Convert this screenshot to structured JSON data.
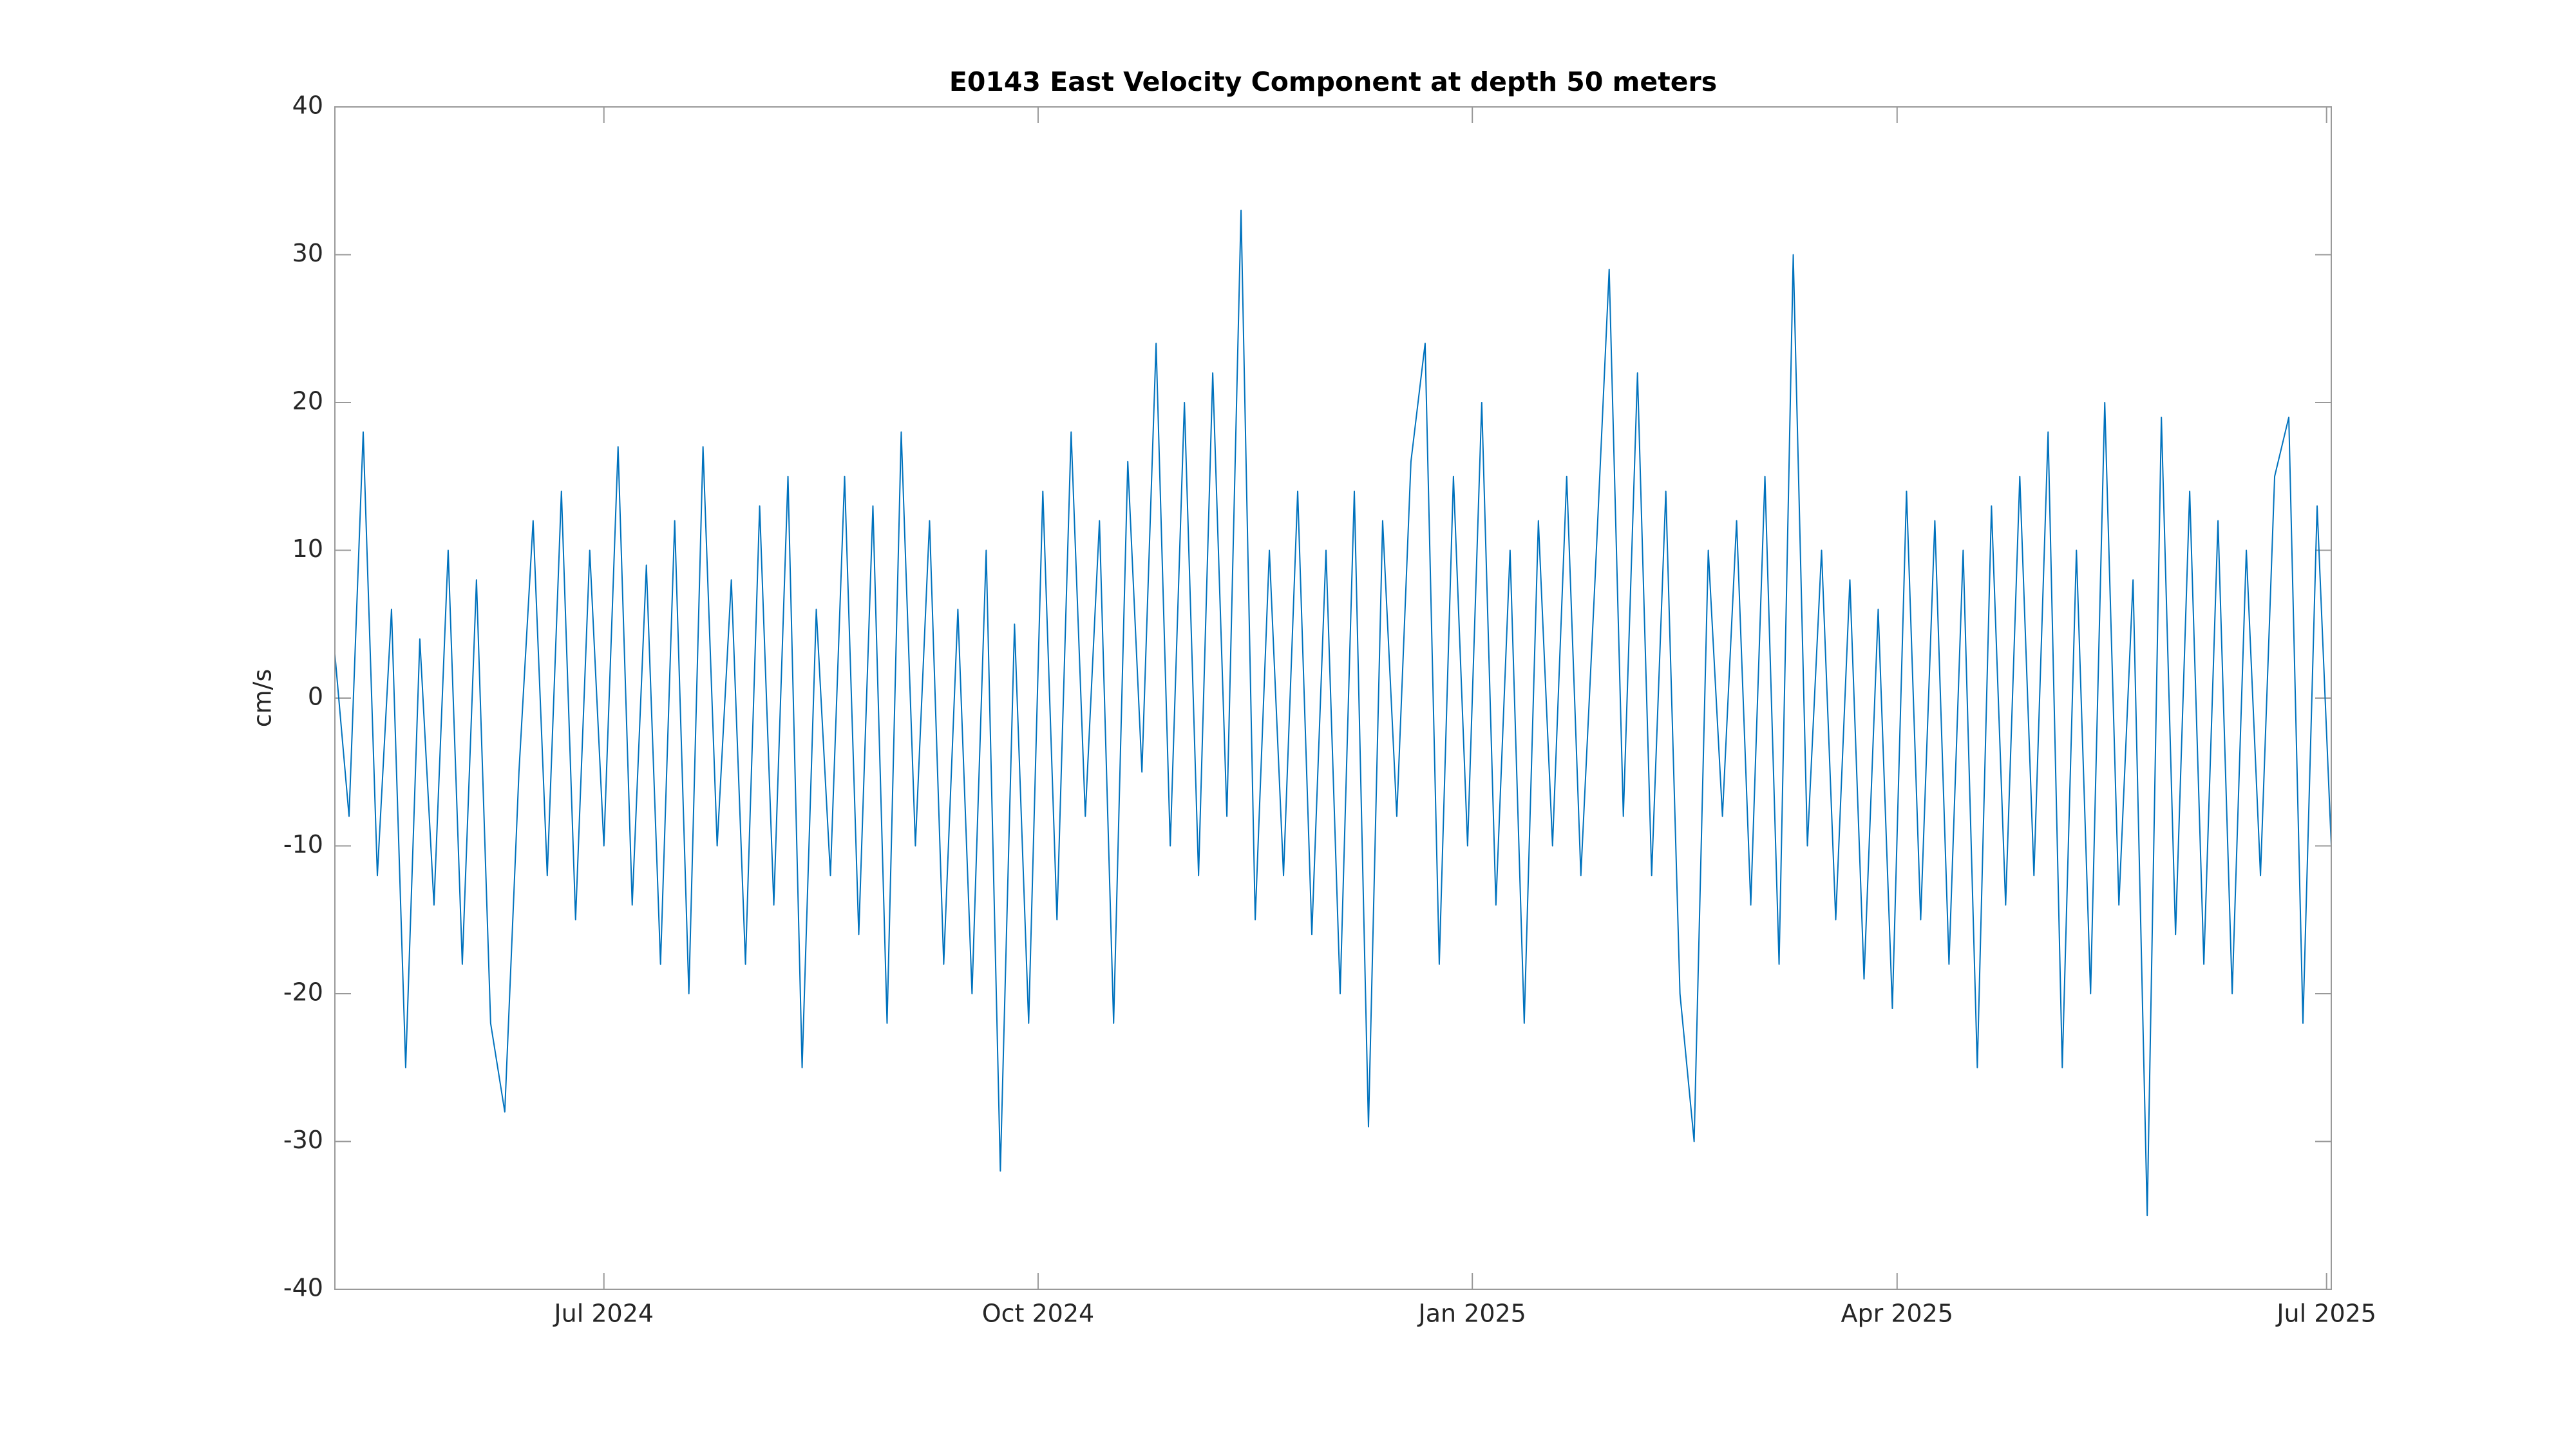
{
  "chart_data": {
    "type": "line",
    "title": "E0143 East Velocity Component at depth 50 meters",
    "ylabel": "cm/s",
    "x": [
      "2024-05-05",
      "2024-05-08",
      "2024-05-11",
      "2024-05-14",
      "2024-05-17",
      "2024-05-20",
      "2024-05-23",
      "2024-05-26",
      "2024-05-29",
      "2024-06-01",
      "2024-06-04",
      "2024-06-07",
      "2024-06-10",
      "2024-06-13",
      "2024-06-16",
      "2024-06-19",
      "2024-06-22",
      "2024-06-25",
      "2024-06-28",
      "2024-07-01",
      "2024-07-04",
      "2024-07-07",
      "2024-07-10",
      "2024-07-13",
      "2024-07-16",
      "2024-07-19",
      "2024-07-22",
      "2024-07-25",
      "2024-07-28",
      "2024-07-31",
      "2024-08-03",
      "2024-08-06",
      "2024-08-09",
      "2024-08-12",
      "2024-08-15",
      "2024-08-18",
      "2024-08-21",
      "2024-08-24",
      "2024-08-27",
      "2024-08-30",
      "2024-09-02",
      "2024-09-05",
      "2024-09-08",
      "2024-09-11",
      "2024-09-14",
      "2024-09-17",
      "2024-09-20",
      "2024-09-23",
      "2024-09-26",
      "2024-09-29",
      "2024-10-02",
      "2024-10-05",
      "2024-10-08",
      "2024-10-11",
      "2024-10-14",
      "2024-10-17",
      "2024-10-20",
      "2024-10-23",
      "2024-10-26",
      "2024-10-29",
      "2024-11-01",
      "2024-11-04",
      "2024-11-07",
      "2024-11-10",
      "2024-11-13",
      "2024-11-16",
      "2024-11-19",
      "2024-11-22",
      "2024-11-25",
      "2024-11-28",
      "2024-12-01",
      "2024-12-04",
      "2024-12-07",
      "2024-12-10",
      "2024-12-13",
      "2024-12-16",
      "2024-12-19",
      "2024-12-22",
      "2024-12-25",
      "2024-12-28",
      "2024-12-31",
      "2025-01-03",
      "2025-01-06",
      "2025-01-09",
      "2025-01-12",
      "2025-01-15",
      "2025-01-18",
      "2025-01-21",
      "2025-01-24",
      "2025-01-27",
      "2025-01-30",
      "2025-02-02",
      "2025-02-05",
      "2025-02-08",
      "2025-02-11",
      "2025-02-14",
      "2025-02-17",
      "2025-02-20",
      "2025-02-23",
      "2025-02-26",
      "2025-03-01",
      "2025-03-04",
      "2025-03-07",
      "2025-03-10",
      "2025-03-13",
      "2025-03-16",
      "2025-03-19",
      "2025-03-22",
      "2025-03-25",
      "2025-03-28",
      "2025-03-31",
      "2025-04-03",
      "2025-04-06",
      "2025-04-09",
      "2025-04-12",
      "2025-04-15",
      "2025-04-18",
      "2025-04-21",
      "2025-04-24",
      "2025-04-27",
      "2025-04-30",
      "2025-05-03",
      "2025-05-06",
      "2025-05-09",
      "2025-05-12",
      "2025-05-15",
      "2025-05-18",
      "2025-05-21",
      "2025-05-24",
      "2025-05-27",
      "2025-05-30",
      "2025-06-02",
      "2025-06-05",
      "2025-06-08",
      "2025-06-11",
      "2025-06-14",
      "2025-06-17",
      "2025-06-20",
      "2025-06-23",
      "2025-06-26",
      "2025-06-29",
      "2025-07-02"
    ],
    "series": [
      {
        "color": "#0072bd",
        "values": [
          3,
          -8,
          18,
          -12,
          6,
          -25,
          4,
          -14,
          10,
          -18,
          8,
          -22,
          -28,
          -5,
          12,
          -12,
          14,
          -15,
          10,
          -10,
          17,
          -14,
          9,
          -18,
          12,
          -20,
          17,
          -10,
          8,
          -18,
          13,
          -14,
          15,
          -25,
          6,
          -12,
          15,
          -16,
          13,
          -22,
          18,
          -10,
          12,
          -18,
          6,
          -20,
          10,
          -32,
          5,
          -22,
          14,
          -15,
          18,
          -8,
          12,
          -22,
          16,
          -5,
          24,
          -10,
          20,
          -12,
          22,
          -8,
          33,
          -15,
          10,
          -12,
          14,
          -16,
          10,
          -20,
          14,
          -29,
          12,
          -8,
          16,
          24,
          -18,
          15,
          -10,
          20,
          -14,
          10,
          -22,
          12,
          -10,
          15,
          -12,
          8,
          29,
          -8,
          22,
          -12,
          14,
          -20,
          -30,
          10,
          -8,
          12,
          -14,
          15,
          -18,
          30,
          -10,
          10,
          -15,
          8,
          -19,
          6,
          -21,
          14,
          -15,
          12,
          -18,
          10,
          -25,
          13,
          -14,
          15,
          -12,
          18,
          -25,
          10,
          -20,
          20,
          -14,
          8,
          -35,
          19,
          -16,
          14,
          -18,
          12,
          -20,
          10,
          -12,
          15,
          19,
          -22,
          13,
          -10
        ]
      }
    ],
    "xlim": [
      "2024-05-05",
      "2025-07-02"
    ],
    "xticks": [
      {
        "value": "2024-07",
        "label": "Jul 2024"
      },
      {
        "value": "2024-10",
        "label": "Oct 2024"
      },
      {
        "value": "2025-01",
        "label": "Jan 2025"
      },
      {
        "value": "2025-04",
        "label": "Apr 2025"
      },
      {
        "value": "2025-07",
        "label": "Jul 2025"
      }
    ],
    "ylim": [
      -40,
      40
    ],
    "yticks": [
      -40,
      -30,
      -20,
      -10,
      0,
      10,
      20,
      30,
      40
    ],
    "grid": false
  }
}
